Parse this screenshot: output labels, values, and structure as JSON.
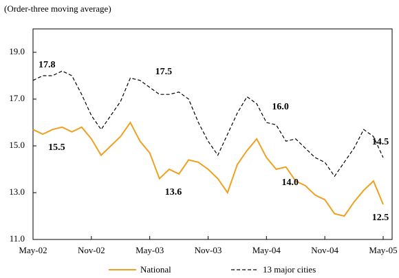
{
  "chart_data": {
    "type": "line",
    "subtitle": "(Order-three moving average)",
    "categories": [
      "May-02",
      null,
      null,
      null,
      null,
      null,
      "Nov-02",
      null,
      null,
      null,
      null,
      null,
      "May-03",
      null,
      null,
      null,
      null,
      null,
      "Nov-03",
      null,
      null,
      null,
      null,
      null,
      "May-04",
      null,
      null,
      null,
      null,
      null,
      "Nov-04",
      null,
      null,
      null,
      null,
      null,
      "May-05"
    ],
    "series": [
      {
        "name": "National",
        "color": "#f0a020",
        "dash": false,
        "values": [
          15.7,
          15.5,
          15.7,
          15.8,
          15.6,
          15.8,
          15.3,
          14.6,
          15.0,
          15.4,
          16.0,
          15.2,
          14.7,
          13.6,
          14.0,
          13.8,
          14.4,
          14.3,
          14.0,
          13.6,
          13.0,
          14.2,
          14.8,
          15.3,
          14.5,
          14.0,
          14.1,
          13.5,
          13.3,
          12.9,
          12.7,
          12.1,
          12.0,
          12.6,
          13.1,
          13.5,
          12.5
        ],
        "value_labels": [
          null,
          "15.5",
          null,
          null,
          null,
          null,
          null,
          null,
          null,
          null,
          null,
          null,
          null,
          "13.6",
          null,
          null,
          null,
          null,
          null,
          null,
          null,
          null,
          null,
          null,
          null,
          "14.0",
          null,
          null,
          null,
          null,
          null,
          null,
          null,
          null,
          null,
          null,
          "12.5"
        ]
      },
      {
        "name": "13 major cities",
        "color": "#000000",
        "dash": true,
        "values": [
          17.8,
          18.0,
          18.0,
          18.2,
          18.0,
          17.2,
          16.3,
          15.7,
          16.3,
          16.9,
          17.9,
          17.8,
          17.5,
          17.2,
          17.2,
          17.3,
          17.0,
          16.0,
          15.2,
          14.6,
          15.5,
          16.4,
          17.1,
          16.8,
          16.0,
          15.9,
          15.2,
          15.3,
          14.9,
          14.5,
          14.3,
          13.7,
          14.3,
          14.9,
          15.7,
          15.4,
          14.5
        ],
        "value_labels": [
          "17.8",
          null,
          null,
          null,
          null,
          null,
          null,
          null,
          null,
          null,
          null,
          null,
          "17.5",
          null,
          null,
          null,
          null,
          null,
          null,
          null,
          null,
          null,
          null,
          null,
          "16.0",
          null,
          null,
          null,
          null,
          null,
          null,
          null,
          null,
          null,
          null,
          null,
          "14.5"
        ]
      }
    ],
    "ylim": [
      11,
      20
    ],
    "yticks": [
      {
        "value": 11,
        "label": "11.0"
      },
      {
        "value": 13,
        "label": "13.0"
      },
      {
        "value": 15,
        "label": "15.0"
      },
      {
        "value": 17,
        "label": "17.0"
      },
      {
        "value": 19,
        "label": "19.0"
      }
    ],
    "grid": false,
    "legend": "bottom"
  }
}
